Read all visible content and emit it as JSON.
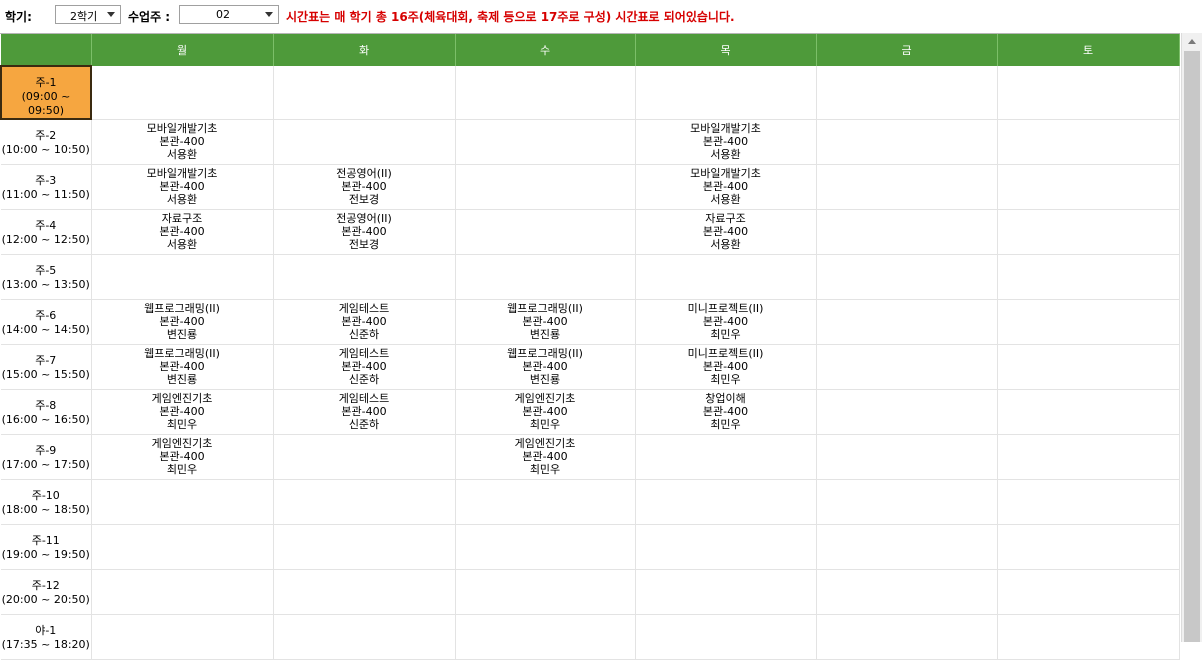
{
  "toolbar": {
    "semester_label": "학기:",
    "semester_value": "2학기",
    "week_label": "수업주 :",
    "week_value": "02",
    "notice": "시간표는 매 학기 총 16주(체육대회, 축제 등으로 17주로 구성) 시간표로 되어있습니다."
  },
  "timetable": {
    "days": [
      "월",
      "화",
      "수",
      "목",
      "금",
      "토"
    ],
    "rows": [
      {
        "name": "주-1",
        "time": "(09:00 ~ 09:50)",
        "active": true,
        "cells": [
          "",
          "",
          "",
          "",
          "",
          ""
        ]
      },
      {
        "name": "주-2",
        "time": "(10:00 ~ 10:50)",
        "active": false,
        "cells": [
          "모바일개발기초\n본관-400\n서용환",
          "",
          "",
          "모바일개발기초\n본관-400\n서용환",
          "",
          ""
        ]
      },
      {
        "name": "주-3",
        "time": "(11:00 ~ 11:50)",
        "active": false,
        "cells": [
          "모바일개발기초\n본관-400\n서용환",
          "전공영어(II)\n본관-400\n전보경",
          "",
          "모바일개발기초\n본관-400\n서용환",
          "",
          ""
        ]
      },
      {
        "name": "주-4",
        "time": "(12:00 ~ 12:50)",
        "active": false,
        "cells": [
          "자료구조\n본관-400\n서용환",
          "전공영어(II)\n본관-400\n전보경",
          "",
          "자료구조\n본관-400\n서용환",
          "",
          ""
        ]
      },
      {
        "name": "주-5",
        "time": "(13:00 ~ 13:50)",
        "active": false,
        "cells": [
          "",
          "",
          "",
          "",
          "",
          ""
        ]
      },
      {
        "name": "주-6",
        "time": "(14:00 ~ 14:50)",
        "active": false,
        "cells": [
          "웹프로그래밍(II)\n본관-400\n변진룡",
          "게임테스트\n본관-400\n신준하",
          "웹프로그래밍(II)\n본관-400\n변진룡",
          "미니프로젝트(II)\n본관-400\n최민우",
          "",
          ""
        ]
      },
      {
        "name": "주-7",
        "time": "(15:00 ~ 15:50)",
        "active": false,
        "cells": [
          "웹프로그래밍(II)\n본관-400\n변진룡",
          "게임테스트\n본관-400\n신준하",
          "웹프로그래밍(II)\n본관-400\n변진룡",
          "미니프로젝트(II)\n본관-400\n최민우",
          "",
          ""
        ]
      },
      {
        "name": "주-8",
        "time": "(16:00 ~ 16:50)",
        "active": false,
        "cells": [
          "게임엔진기초\n본관-400\n최민우",
          "게임테스트\n본관-400\n신준하",
          "게임엔진기초\n본관-400\n최민우",
          "창업이해\n본관-400\n최민우",
          "",
          ""
        ]
      },
      {
        "name": "주-9",
        "time": "(17:00 ~ 17:50)",
        "active": false,
        "cells": [
          "게임엔진기초\n본관-400\n최민우",
          "",
          "게임엔진기초\n본관-400\n최민우",
          "",
          "",
          ""
        ]
      },
      {
        "name": "주-10",
        "time": "(18:00 ~ 18:50)",
        "active": false,
        "cells": [
          "",
          "",
          "",
          "",
          "",
          ""
        ]
      },
      {
        "name": "주-11",
        "time": "(19:00 ~ 19:50)",
        "active": false,
        "cells": [
          "",
          "",
          "",
          "",
          "",
          ""
        ]
      },
      {
        "name": "주-12",
        "time": "(20:00 ~ 20:50)",
        "active": false,
        "cells": [
          "",
          "",
          "",
          "",
          "",
          ""
        ]
      },
      {
        "name": "야-1",
        "time": "(17:35 ~ 18:20)",
        "active": false,
        "cells": [
          "",
          "",
          "",
          "",
          "",
          ""
        ]
      }
    ]
  }
}
